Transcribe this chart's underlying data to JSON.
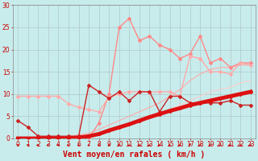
{
  "xlabel": "Vent moyen/en rafales ( km/h )",
  "xlim": [
    -0.5,
    23.5
  ],
  "ylim": [
    0,
    30
  ],
  "yticks": [
    0,
    5,
    10,
    15,
    20,
    25,
    30
  ],
  "xticks": [
    0,
    1,
    2,
    3,
    4,
    5,
    6,
    7,
    8,
    9,
    10,
    11,
    12,
    13,
    14,
    15,
    16,
    17,
    18,
    19,
    20,
    21,
    22,
    23
  ],
  "bg_color": "#c8ecec",
  "grid_color": "#b0c8c8",
  "line_rafales_x": [
    0,
    1,
    2,
    3,
    4,
    5,
    6,
    7,
    8,
    9,
    10,
    11,
    12,
    13,
    14,
    15,
    16,
    17,
    18,
    19,
    20,
    21,
    22,
    23
  ],
  "line_rafales_y": [
    0,
    0,
    0,
    0,
    0,
    0,
    0,
    0,
    3.5,
    10,
    25,
    27,
    22,
    23,
    21,
    20,
    18,
    19,
    23,
    17,
    18,
    16,
    17,
    17
  ],
  "line_rafales_color": "#ff8888",
  "line_rafales_lw": 1.0,
  "line_moyen_x": [
    0,
    1,
    2,
    3,
    4,
    5,
    6,
    7,
    8,
    9,
    10,
    11,
    12,
    13,
    14,
    15,
    16,
    17,
    18,
    19,
    20,
    21,
    22,
    23
  ],
  "line_moyen_y": [
    4,
    2.5,
    0.5,
    0.5,
    0.5,
    0.5,
    0.5,
    12,
    10.5,
    9,
    10.5,
    8.5,
    10.5,
    10.5,
    6,
    9.5,
    9.5,
    8,
    8,
    8,
    8,
    8.5,
    7.5,
    7.5
  ],
  "line_moyen_color": "#cc2222",
  "line_moyen_lw": 1.0,
  "line_env_upper_x": [
    0,
    1,
    2,
    3,
    4,
    5,
    6,
    7,
    8,
    9,
    10,
    11,
    12,
    13,
    14,
    15,
    16,
    17,
    18,
    19,
    20,
    21,
    22,
    23
  ],
  "line_env_upper_y": [
    9.5,
    9.5,
    9.5,
    9.5,
    9.5,
    7.8,
    7.0,
    6.5,
    6.0,
    9.3,
    10.0,
    10.5,
    10.5,
    10.4,
    10.5,
    10.5,
    9.5,
    18.5,
    18.0,
    15.0,
    15.0,
    14.5,
    17.0,
    16.5
  ],
  "line_env_upper_color": "#ffaaaa",
  "line_env_upper_lw": 1.0,
  "line_trend1_x": [
    0,
    1,
    2,
    3,
    4,
    5,
    6,
    7,
    8,
    9,
    10,
    11,
    12,
    13,
    14,
    15,
    16,
    17,
    18,
    19,
    20,
    21,
    22,
    23
  ],
  "line_trend1_y": [
    0,
    0,
    0,
    0,
    0.3,
    0.5,
    0.8,
    1.2,
    2.0,
    3.0,
    4.0,
    5.0,
    6.0,
    7.0,
    8.0,
    9.5,
    11.0,
    13.0,
    14.5,
    15.5,
    16.0,
    16.0,
    16.5,
    16.5
  ],
  "line_trend1_color": "#ffaaaa",
  "line_trend1_lw": 0.8,
  "line_trend2_x": [
    0,
    1,
    2,
    3,
    4,
    5,
    6,
    7,
    8,
    9,
    10,
    11,
    12,
    13,
    14,
    15,
    16,
    17,
    18,
    19,
    20,
    21,
    22,
    23
  ],
  "line_trend2_y": [
    0,
    0,
    0,
    0,
    0.2,
    0.3,
    0.5,
    0.8,
    1.2,
    1.8,
    2.5,
    3.2,
    4.0,
    4.8,
    5.5,
    6.5,
    7.5,
    8.5,
    9.5,
    10.5,
    11.0,
    11.5,
    12.5,
    13.0
  ],
  "line_trend2_color": "#ffcccc",
  "line_trend2_lw": 0.8,
  "line_thick_x": [
    0,
    1,
    2,
    3,
    4,
    5,
    6,
    7,
    8,
    9,
    10,
    11,
    12,
    13,
    14,
    15,
    16,
    17,
    18,
    19,
    20,
    21,
    22,
    23
  ],
  "line_thick_y": [
    0,
    0,
    0,
    0,
    0,
    0,
    0.2,
    0.5,
    1.0,
    1.8,
    2.5,
    3.2,
    4.0,
    4.8,
    5.5,
    6.2,
    6.8,
    7.5,
    8.0,
    8.5,
    9.0,
    9.5,
    10.0,
    10.5
  ],
  "line_thick_color": "#dd1111",
  "line_thick_lw": 3.5,
  "wind_arrows_x": [
    0,
    1,
    2,
    3,
    4,
    5,
    6,
    7,
    8,
    9,
    10,
    11,
    12,
    13,
    14,
    15,
    16,
    17,
    18,
    19,
    20,
    21,
    22,
    23
  ],
  "wind_arrows_angles": [
    225,
    225,
    270,
    270,
    270,
    270,
    315,
    315,
    315,
    315,
    315,
    315,
    315,
    315,
    315,
    315,
    315,
    0,
    315,
    315,
    315,
    315,
    315,
    315
  ],
  "label_color": "#cc0000",
  "tick_color": "#cc0000",
  "axis_color": "#888888",
  "xlabel_fontsize": 7,
  "tick_fontsize": 5.5
}
